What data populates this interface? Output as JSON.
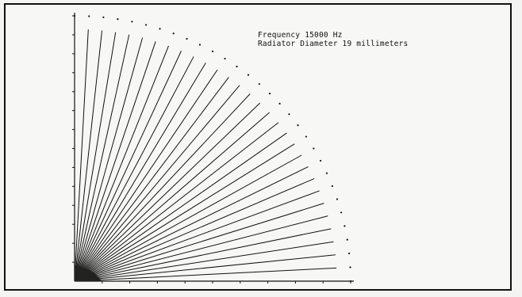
{
  "caption": {
    "line1": "Frequency 15000 Hz",
    "line2": "Radiator Diameter 19 millimeters"
  },
  "chart_data": {
    "type": "polar-fan",
    "title": "",
    "angles_deg": [
      0,
      3,
      6,
      9,
      12,
      15,
      18,
      21,
      24,
      27,
      30,
      33,
      36,
      39,
      42,
      45,
      48,
      51,
      54,
      57,
      60,
      63,
      66,
      69,
      72,
      75,
      78,
      81,
      84,
      87,
      90
    ],
    "relative_magnitude": [
      0.95,
      0.95,
      0.95,
      0.95,
      0.95,
      0.95,
      0.95,
      0.95,
      0.95,
      0.95,
      0.95,
      0.95,
      0.95,
      0.95,
      0.95,
      0.95,
      0.95,
      0.95,
      0.95,
      0.95,
      0.95,
      0.95,
      0.95,
      0.95,
      0.95,
      0.95,
      0.95,
      0.95,
      0.95,
      0.95,
      0.95
    ],
    "reference_arc_magnitude": 1.0,
    "x_ticks": 10,
    "y_ticks": 14,
    "grid": false
  },
  "colors": {
    "ink": "#111111",
    "paper": "#f7f7f5"
  }
}
